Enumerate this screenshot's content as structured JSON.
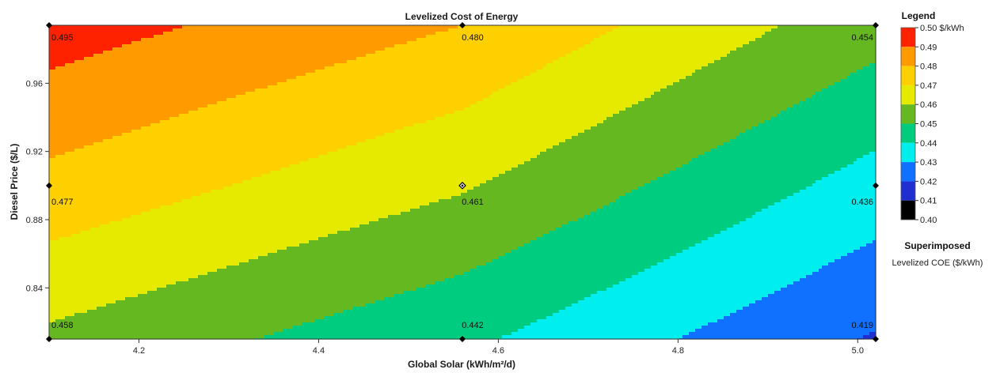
{
  "chart_data": {
    "type": "heatmap",
    "title": "Levelized Cost of Energy",
    "xlabel": "Global Solar (kWh/m²/d)",
    "ylabel": "Diesel Price ($/L)",
    "xlim": [
      4.1,
      5.02
    ],
    "ylim": [
      0.81,
      0.994
    ],
    "x_ticks": [
      "4.2",
      "4.4",
      "4.6",
      "4.8",
      "5.0"
    ],
    "y_ticks": [
      "0.96",
      "0.92",
      "0.88",
      "0.84"
    ],
    "grid_points": {
      "x": [
        4.1,
        4.56,
        5.02
      ],
      "y": [
        0.81,
        0.9,
        0.994
      ],
      "values": [
        [
          0.458,
          0.442,
          0.419
        ],
        [
          0.477,
          0.461,
          0.436
        ],
        [
          0.495,
          0.48,
          0.454
        ]
      ]
    },
    "value_labels": [
      {
        "x": 4.1,
        "y": 0.994,
        "text": "0.495"
      },
      {
        "x": 4.56,
        "y": 0.994,
        "text": "0.480"
      },
      {
        "x": 5.02,
        "y": 0.994,
        "text": "0.454"
      },
      {
        "x": 4.1,
        "y": 0.9,
        "text": "0.477"
      },
      {
        "x": 4.56,
        "y": 0.9,
        "text": "0.461"
      },
      {
        "x": 5.02,
        "y": 0.9,
        "text": "0.436"
      },
      {
        "x": 4.1,
        "y": 0.81,
        "text": "0.458"
      },
      {
        "x": 4.56,
        "y": 0.81,
        "text": "0.442"
      },
      {
        "x": 5.02,
        "y": 0.81,
        "text": "0.419"
      }
    ],
    "legend": {
      "title": "Legend",
      "labels": [
        "0.50 $/kWh",
        "0.49",
        "0.48",
        "0.47",
        "0.46",
        "0.45",
        "0.44",
        "0.43",
        "0.42",
        "0.41",
        "0.40"
      ],
      "bins": [
        {
          "from": 0.49,
          "to": 0.5,
          "color": "#ff2200"
        },
        {
          "from": 0.48,
          "to": 0.49,
          "color": "#ff9a00"
        },
        {
          "from": 0.47,
          "to": 0.48,
          "color": "#ffd000"
        },
        {
          "from": 0.46,
          "to": 0.47,
          "color": "#e6ea00"
        },
        {
          "from": 0.45,
          "to": 0.46,
          "color": "#66b820"
        },
        {
          "from": 0.44,
          "to": 0.45,
          "color": "#00cc80"
        },
        {
          "from": 0.43,
          "to": 0.44,
          "color": "#00eeee"
        },
        {
          "from": 0.42,
          "to": 0.43,
          "color": "#1070ff"
        },
        {
          "from": 0.41,
          "to": 0.42,
          "color": "#2030d0"
        },
        {
          "from": 0.4,
          "to": 0.41,
          "color": "#000000"
        }
      ],
      "placement": "right"
    },
    "superimposed": {
      "title": "Superimposed",
      "label": "Levelized COE ($/kWh)"
    }
  }
}
